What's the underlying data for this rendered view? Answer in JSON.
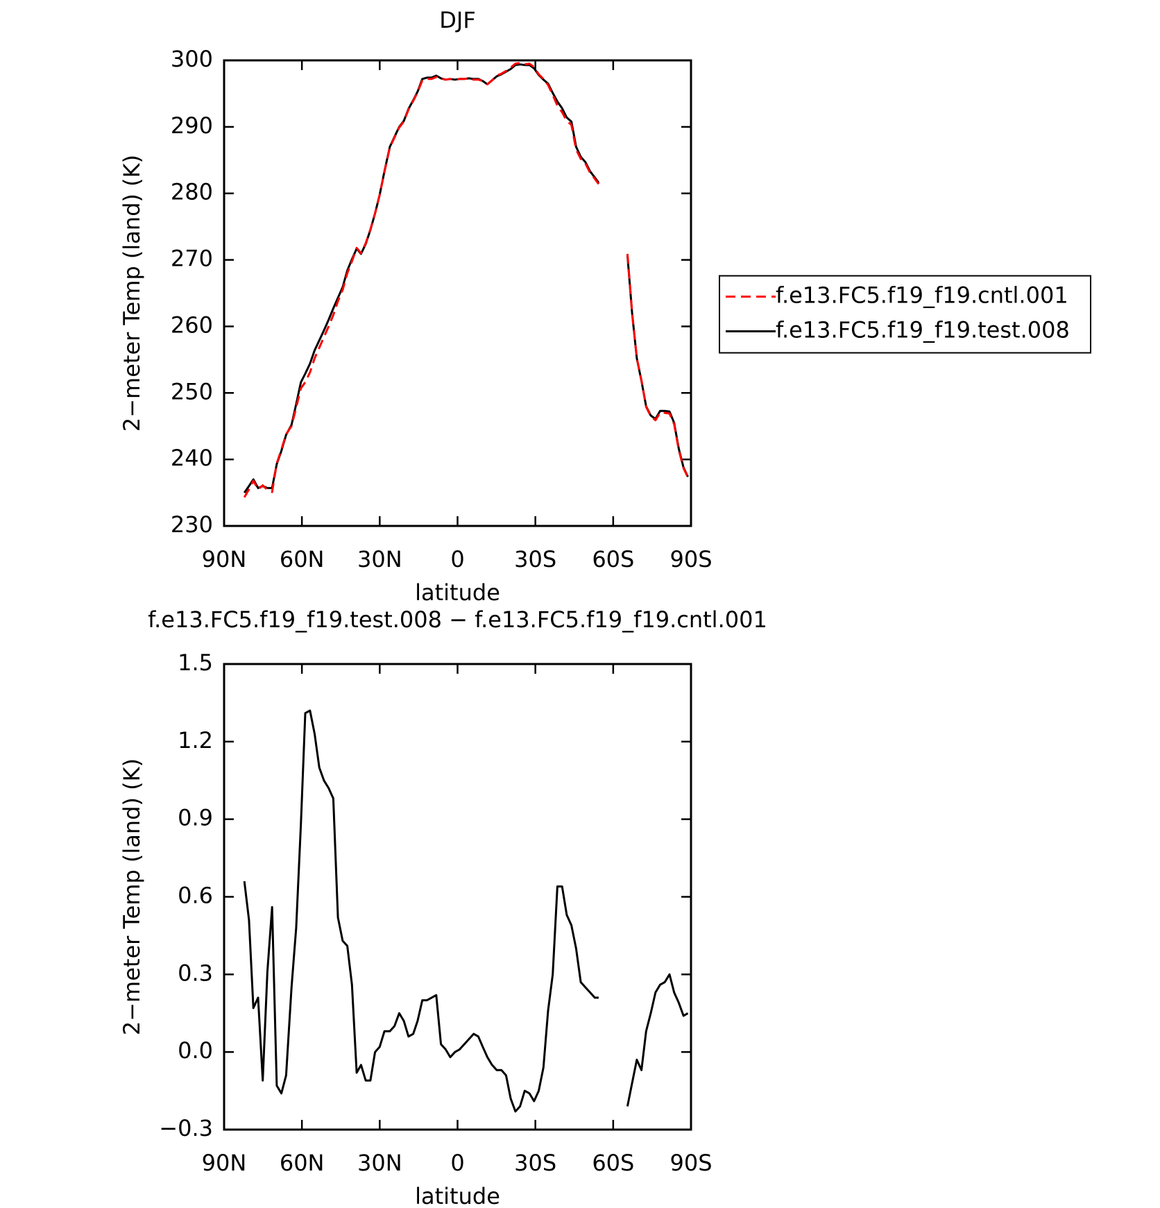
{
  "chart_data": [
    {
      "type": "line",
      "title": "DJF",
      "xlabel": "latitude",
      "ylabel": "2−meter Temp (land) (K)",
      "xlim": [
        90,
        -90
      ],
      "ylim": [
        230,
        300
      ],
      "xticks": [
        {
          "value": 90,
          "label": "90N"
        },
        {
          "value": 60,
          "label": "60N"
        },
        {
          "value": 30,
          "label": "30N"
        },
        0,
        {
          "value": -30,
          "label": "30S"
        },
        {
          "value": -60,
          "label": "60S"
        },
        {
          "value": -90,
          "label": "90S"
        }
      ],
      "yticks": [
        230,
        240,
        250,
        260,
        270,
        280,
        290,
        300
      ],
      "legend": "right",
      "x": [
        82.2,
        80.4,
        78.7,
        76.9,
        75.1,
        73.3,
        71.5,
        69.7,
        67.9,
        66.1,
        64.0,
        62.2,
        60.4,
        58.7,
        56.9,
        55.1,
        53.3,
        51.5,
        49.7,
        47.9,
        46.1,
        44.3,
        42.5,
        40.7,
        38.9,
        37.2,
        35.4,
        33.6,
        31.8,
        30.0,
        28.2,
        26.1,
        24.3,
        22.5,
        20.7,
        18.9,
        17.1,
        15.4,
        13.6,
        11.8,
        10.0,
        8.2,
        6.4,
        4.6,
        2.8,
        1.0,
        -0.8,
        -2.6,
        -4.4,
        -6.2,
        -8.0,
        -9.7,
        -11.5,
        -13.3,
        -15.1,
        -16.9,
        -18.7,
        -20.5,
        -22.3,
        -24.1,
        -25.9,
        -27.7,
        -29.5,
        -31.3,
        -33.1,
        -34.9,
        -36.7,
        -38.5,
        -40.3,
        -42.1,
        -43.9,
        -45.7,
        -47.5,
        -49.3,
        -51.1,
        -52.9,
        -54.4,
        -60.0,
        -65.5,
        -67.3,
        -69.1,
        -70.9,
        -72.7,
        -74.5,
        -76.3,
        -78.1,
        -79.9,
        -81.7,
        -83.5,
        -85.3,
        -87.1,
        -88.8
      ],
      "series": [
        {
          "name": "f.e13.FC5.f19_f19.cntl.001",
          "color": "#ff0000",
          "style": "dashed",
          "values": [
            234.3,
            235.5,
            236.8,
            235.5,
            236.1,
            235.4,
            235.1,
            239.4,
            241.5,
            243.8,
            245.0,
            247.8,
            250.7,
            251.6,
            253.1,
            255.2,
            256.8,
            258.4,
            260.0,
            261.7,
            263.8,
            265.5,
            268.0,
            269.8,
            271.8,
            271.0,
            272.5,
            274.6,
            277.0,
            279.8,
            283.2,
            286.9,
            288.4,
            289.9,
            290.8,
            292.6,
            293.9,
            295.2,
            297.0,
            297.2,
            297.2,
            297.5,
            297.3,
            297.1,
            297.2,
            297.1,
            297.2,
            297.2,
            297.3,
            297.1,
            297.1,
            296.9,
            296.4,
            297.0,
            297.7,
            298.0,
            298.4,
            298.9,
            299.5,
            299.6,
            299.4,
            299.5,
            299.0,
            297.9,
            297.2,
            296.3,
            294.8,
            293.2,
            292.2,
            290.9,
            290.3,
            286.6,
            285.2,
            284.5,
            283.1,
            282.2,
            281.4,
            null,
            270.9,
            262.1,
            255.2,
            251.9,
            247.9,
            246.5,
            245.9,
            247.0,
            247.0,
            246.9,
            245.3,
            241.4,
            238.7,
            237.3
          ]
        },
        {
          "name": "f.e13.FC5.f19_f19.test.008",
          "color": "#000000",
          "style": "solid",
          "values": [
            235.0,
            236.0,
            237.0,
            235.7,
            236.0,
            235.7,
            235.7,
            239.3,
            241.3,
            243.7,
            245.2,
            248.3,
            251.6,
            252.9,
            254.4,
            256.4,
            257.9,
            259.4,
            261.0,
            262.7,
            264.3,
            265.9,
            268.4,
            270.1,
            271.7,
            270.9,
            272.4,
            274.5,
            277.0,
            279.8,
            283.3,
            287.0,
            288.5,
            290.0,
            290.9,
            292.7,
            294.0,
            295.3,
            297.2,
            297.4,
            297.4,
            297.7,
            297.3,
            297.1,
            297.2,
            297.1,
            297.2,
            297.2,
            297.3,
            297.2,
            297.2,
            296.9,
            296.4,
            297.0,
            297.6,
            297.9,
            298.3,
            298.7,
            299.3,
            299.4,
            299.3,
            299.3,
            298.8,
            297.8,
            297.1,
            296.5,
            295.1,
            293.8,
            292.8,
            291.4,
            290.8,
            287.0,
            285.5,
            284.7,
            283.3,
            282.4,
            281.6,
            null,
            270.7,
            262.0,
            255.2,
            251.8,
            248.0,
            246.6,
            246.1,
            247.3,
            247.3,
            247.2,
            245.5,
            241.6,
            238.8,
            237.4
          ]
        }
      ]
    },
    {
      "type": "line",
      "title": "f.e13.FC5.f19_f19.test.008 − f.e13.FC5.f19_f19.cntl.001",
      "xlabel": "latitude",
      "ylabel": "2−meter Temp (land) (K)",
      "xlim": [
        90,
        -90
      ],
      "ylim": [
        -0.3,
        1.5
      ],
      "xticks": [
        {
          "value": 90,
          "label": "90N"
        },
        {
          "value": 60,
          "label": "60N"
        },
        {
          "value": 30,
          "label": "30N"
        },
        0,
        {
          "value": -30,
          "label": "30S"
        },
        {
          "value": -60,
          "label": "60S"
        },
        {
          "value": -90,
          "label": "90S"
        }
      ],
      "yticks": [
        {
          "value": -0.3,
          "label": "−0.3"
        },
        {
          "value": 0,
          "label": "0.0"
        },
        0.3,
        0.6,
        0.9,
        1.2,
        1.5
      ],
      "color": "#000000",
      "x": [
        82.2,
        80.4,
        78.7,
        76.9,
        75.1,
        73.3,
        71.5,
        69.7,
        67.9,
        66.1,
        64.0,
        62.2,
        60.4,
        58.7,
        56.9,
        55.1,
        53.3,
        51.5,
        49.7,
        47.9,
        46.1,
        44.3,
        42.5,
        40.7,
        38.9,
        37.2,
        35.4,
        33.6,
        31.8,
        30.0,
        28.2,
        26.1,
        24.3,
        22.5,
        20.7,
        18.9,
        17.1,
        15.4,
        13.6,
        11.8,
        10.0,
        8.2,
        6.4,
        4.6,
        2.8,
        1.0,
        -0.8,
        -2.6,
        -4.4,
        -6.2,
        -8.0,
        -9.7,
        -11.5,
        -13.3,
        -15.1,
        -16.9,
        -18.7,
        -20.5,
        -22.3,
        -24.1,
        -25.9,
        -27.7,
        -29.5,
        -31.3,
        -33.1,
        -34.9,
        -36.7,
        -38.5,
        -40.3,
        -42.1,
        -43.9,
        -45.7,
        -47.5,
        -49.3,
        -51.1,
        -52.9,
        -54.4,
        -60.0,
        -65.5,
        -67.3,
        -69.1,
        -70.9,
        -72.7,
        -74.5,
        -76.3,
        -78.1,
        -79.9,
        -81.7,
        -83.5,
        -85.3,
        -87.1,
        -88.8
      ],
      "values": [
        0.66,
        0.51,
        0.17,
        0.21,
        -0.11,
        0.31,
        0.56,
        -0.13,
        -0.16,
        -0.09,
        0.25,
        0.48,
        0.88,
        1.31,
        1.32,
        1.23,
        1.1,
        1.05,
        1.02,
        0.98,
        0.52,
        0.43,
        0.41,
        0.26,
        -0.08,
        -0.05,
        -0.11,
        -0.11,
        0.0,
        0.02,
        0.08,
        0.08,
        0.1,
        0.15,
        0.12,
        0.06,
        0.07,
        0.12,
        0.2,
        0.2,
        0.21,
        0.22,
        0.03,
        0.01,
        -0.02,
        0.0,
        0.01,
        0.03,
        0.05,
        0.07,
        0.06,
        0.02,
        -0.02,
        -0.05,
        -0.07,
        -0.07,
        -0.09,
        -0.18,
        -0.23,
        -0.21,
        -0.15,
        -0.16,
        -0.19,
        -0.15,
        -0.06,
        0.16,
        0.3,
        0.64,
        0.64,
        0.53,
        0.49,
        0.4,
        0.27,
        0.25,
        0.23,
        0.21,
        0.21,
        null,
        -0.21,
        -0.12,
        -0.03,
        -0.07,
        0.08,
        0.15,
        0.23,
        0.26,
        0.27,
        0.3,
        0.23,
        0.19,
        0.14,
        0.15
      ]
    }
  ]
}
